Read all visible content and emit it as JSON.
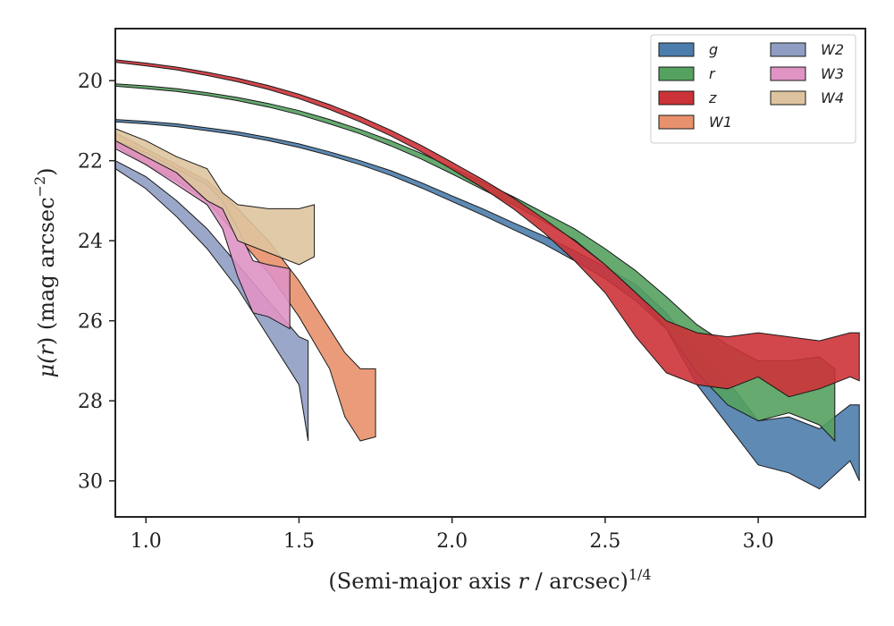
{
  "chart_data": {
    "type": "area",
    "xlabel_main": "(Semi-major axis ",
    "xlabel_var": "r",
    "xlabel_tail": " / arcsec)",
    "xlabel_exp": "1/4",
    "ylabel_main": "μ(",
    "ylabel_var": "r",
    "ylabel_tail": ") (mag arcsec",
    "ylabel_exp": "−2",
    "ylabel_close": ")",
    "xlim": [
      0.9,
      3.35
    ],
    "ylim": [
      30.9,
      18.7
    ],
    "y_inverted": true,
    "xticks": [
      1.0,
      1.5,
      2.0,
      2.5,
      3.0
    ],
    "xtick_labels": [
      "1.0",
      "1.5",
      "2.0",
      "2.5",
      "3.0"
    ],
    "yticks": [
      20,
      22,
      24,
      26,
      28,
      30
    ],
    "ytick_labels": [
      "20",
      "22",
      "24",
      "26",
      "28",
      "30"
    ],
    "legend_position": "top-right",
    "legend_columns": 2,
    "series": [
      {
        "name": "g",
        "color": "#4c7dac",
        "data": [
          [
            0.9,
            20.97,
            21.03
          ],
          [
            1.0,
            21.02,
            21.08
          ],
          [
            1.1,
            21.08,
            21.15
          ],
          [
            1.2,
            21.18,
            21.25
          ],
          [
            1.3,
            21.28,
            21.36
          ],
          [
            1.4,
            21.42,
            21.5
          ],
          [
            1.5,
            21.58,
            21.67
          ],
          [
            1.6,
            21.78,
            21.87
          ],
          [
            1.7,
            22.0,
            22.1
          ],
          [
            1.8,
            22.25,
            22.37
          ],
          [
            1.9,
            22.55,
            22.68
          ],
          [
            2.0,
            22.88,
            23.02
          ],
          [
            2.1,
            23.2,
            23.36
          ],
          [
            2.2,
            23.55,
            23.72
          ],
          [
            2.3,
            23.88,
            24.08
          ],
          [
            2.4,
            24.25,
            24.5
          ],
          [
            2.5,
            24.65,
            24.95
          ],
          [
            2.6,
            25.1,
            25.5
          ],
          [
            2.7,
            25.8,
            26.2
          ],
          [
            2.8,
            26.8,
            27.6
          ],
          [
            2.9,
            27.5,
            28.6
          ],
          [
            3.0,
            28.5,
            29.6
          ],
          [
            3.1,
            28.4,
            29.8
          ],
          [
            3.2,
            28.7,
            30.2
          ],
          [
            3.3,
            28.1,
            29.5
          ],
          [
            3.33,
            28.1,
            30.0
          ]
        ]
      },
      {
        "name": "r",
        "color": "#55a160",
        "data": [
          [
            0.9,
            20.08,
            20.14
          ],
          [
            1.0,
            20.13,
            20.2
          ],
          [
            1.1,
            20.2,
            20.27
          ],
          [
            1.2,
            20.3,
            20.37
          ],
          [
            1.3,
            20.42,
            20.5
          ],
          [
            1.4,
            20.57,
            20.66
          ],
          [
            1.5,
            20.75,
            20.85
          ],
          [
            1.6,
            20.97,
            21.08
          ],
          [
            1.7,
            21.22,
            21.33
          ],
          [
            1.8,
            21.5,
            21.63
          ],
          [
            1.9,
            21.82,
            21.96
          ],
          [
            2.0,
            22.17,
            22.33
          ],
          [
            2.1,
            22.53,
            22.72
          ],
          [
            2.2,
            22.9,
            23.1
          ],
          [
            2.3,
            23.3,
            23.52
          ],
          [
            2.4,
            23.7,
            23.98
          ],
          [
            2.5,
            24.2,
            24.6
          ],
          [
            2.6,
            24.75,
            25.3
          ],
          [
            2.7,
            25.4,
            26.2
          ],
          [
            2.8,
            26.1,
            27.3
          ],
          [
            2.9,
            26.6,
            28.1
          ],
          [
            3.0,
            27.0,
            28.5
          ],
          [
            3.1,
            27.0,
            28.3
          ],
          [
            3.2,
            26.9,
            28.6
          ],
          [
            3.25,
            27.2,
            29.0
          ]
        ]
      },
      {
        "name": "z",
        "color": "#cc3338",
        "data": [
          [
            0.9,
            19.48,
            19.54
          ],
          [
            1.0,
            19.56,
            19.63
          ],
          [
            1.1,
            19.66,
            19.73
          ],
          [
            1.2,
            19.79,
            19.87
          ],
          [
            1.3,
            19.94,
            20.03
          ],
          [
            1.4,
            20.12,
            20.22
          ],
          [
            1.5,
            20.34,
            20.45
          ],
          [
            1.6,
            20.6,
            20.72
          ],
          [
            1.7,
            20.9,
            21.03
          ],
          [
            1.8,
            21.24,
            21.38
          ],
          [
            1.9,
            21.62,
            21.78
          ],
          [
            2.0,
            22.04,
            22.22
          ],
          [
            2.1,
            22.47,
            22.68
          ],
          [
            2.2,
            22.93,
            23.2
          ],
          [
            2.3,
            23.45,
            23.8
          ],
          [
            2.4,
            24.0,
            24.5
          ],
          [
            2.5,
            24.6,
            25.3
          ],
          [
            2.6,
            25.3,
            26.4
          ],
          [
            2.7,
            26.0,
            27.3
          ],
          [
            2.8,
            26.3,
            27.6
          ],
          [
            2.9,
            26.4,
            27.7
          ],
          [
            3.0,
            26.3,
            27.4
          ],
          [
            3.1,
            26.4,
            27.9
          ],
          [
            3.2,
            26.5,
            27.7
          ],
          [
            3.3,
            26.3,
            27.4
          ],
          [
            3.33,
            26.3,
            27.5
          ]
        ]
      },
      {
        "name": "W1",
        "color": "#e8916c",
        "data": [
          [
            0.9,
            21.3,
            21.6
          ],
          [
            1.0,
            21.7,
            22.1
          ],
          [
            1.1,
            22.1,
            22.5
          ],
          [
            1.2,
            22.5,
            23.0
          ],
          [
            1.3,
            23.2,
            23.9
          ],
          [
            1.4,
            24.0,
            24.8
          ],
          [
            1.5,
            25.0,
            25.9
          ],
          [
            1.6,
            26.2,
            27.2
          ],
          [
            1.65,
            26.8,
            28.4
          ],
          [
            1.7,
            27.2,
            29.0
          ],
          [
            1.75,
            27.2,
            28.9
          ]
        ]
      },
      {
        "name": "W2",
        "color": "#8f9dc2",
        "data": [
          [
            0.9,
            22.0,
            22.2
          ],
          [
            1.0,
            22.4,
            22.7
          ],
          [
            1.1,
            23.0,
            23.4
          ],
          [
            1.2,
            23.7,
            24.2
          ],
          [
            1.3,
            24.6,
            25.2
          ],
          [
            1.4,
            25.5,
            26.4
          ],
          [
            1.5,
            26.4,
            27.6
          ],
          [
            1.53,
            26.5,
            29.0
          ]
        ]
      },
      {
        "name": "W3",
        "color": "#df94c4",
        "data": [
          [
            0.9,
            21.5,
            21.7
          ],
          [
            1.0,
            21.8,
            22.1
          ],
          [
            1.1,
            22.2,
            22.6
          ],
          [
            1.2,
            22.6,
            23.1
          ],
          [
            1.25,
            23.0,
            23.7
          ],
          [
            1.3,
            23.7,
            24.9
          ],
          [
            1.35,
            24.5,
            25.8
          ],
          [
            1.4,
            24.6,
            25.9
          ],
          [
            1.47,
            24.7,
            26.2
          ]
        ]
      },
      {
        "name": "W4",
        "color": "#dec49e",
        "data": [
          [
            0.9,
            21.2,
            21.5
          ],
          [
            1.0,
            21.5,
            21.9
          ],
          [
            1.1,
            21.9,
            22.3
          ],
          [
            1.2,
            22.2,
            23.0
          ],
          [
            1.25,
            22.8,
            23.2
          ],
          [
            1.3,
            23.1,
            24.0
          ],
          [
            1.4,
            23.2,
            24.3
          ],
          [
            1.5,
            23.2,
            24.6
          ],
          [
            1.55,
            23.1,
            24.4
          ]
        ]
      }
    ]
  }
}
